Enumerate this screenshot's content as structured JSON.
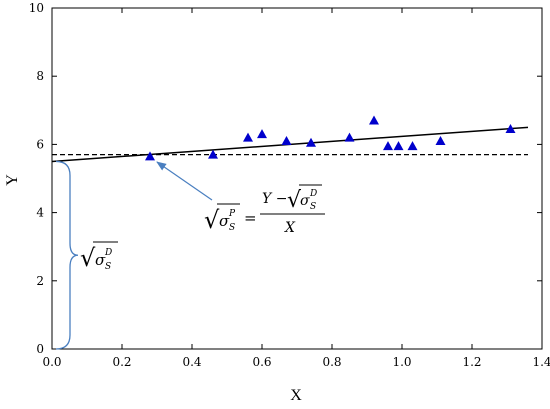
{
  "chart_data": {
    "type": "scatter",
    "title": "",
    "xlabel": "X",
    "ylabel": "Y",
    "xlim": [
      0.0,
      1.4
    ],
    "ylim": [
      0,
      10
    ],
    "x_ticks": [
      0.0,
      0.2,
      0.4,
      0.6,
      0.8,
      1.0,
      1.2,
      1.4
    ],
    "x_tick_labels": [
      "0.0",
      "0.2",
      "0.4",
      "0.6",
      "0.8",
      "1.0",
      "1.2",
      "1.4"
    ],
    "y_ticks": [
      0,
      2,
      4,
      6,
      8,
      10
    ],
    "y_tick_labels": [
      "0",
      "2",
      "4",
      "6",
      "8",
      "10"
    ],
    "grid": false,
    "legend": "none",
    "series": [
      {
        "marker": "triangle",
        "color": "#0000cc",
        "points": [
          {
            "x": 0.28,
            "y": 5.65
          },
          {
            "x": 0.46,
            "y": 5.7
          },
          {
            "x": 0.56,
            "y": 6.2
          },
          {
            "x": 0.6,
            "y": 6.3
          },
          {
            "x": 0.67,
            "y": 6.1
          },
          {
            "x": 0.74,
            "y": 6.05
          },
          {
            "x": 0.85,
            "y": 6.2
          },
          {
            "x": 0.92,
            "y": 6.7
          },
          {
            "x": 0.96,
            "y": 5.95
          },
          {
            "x": 0.99,
            "y": 5.95
          },
          {
            "x": 1.03,
            "y": 5.95
          },
          {
            "x": 1.11,
            "y": 6.1
          },
          {
            "x": 1.31,
            "y": 6.45
          }
        ]
      }
    ],
    "lines": [
      {
        "style": "solid",
        "color": "#000000",
        "x1": 0.0,
        "y1": 5.5,
        "x2": 1.36,
        "y2": 6.5
      },
      {
        "style": "dashed",
        "color": "#000000",
        "x1": 0.0,
        "y1": 5.7,
        "x2": 1.36,
        "y2": 5.7
      }
    ],
    "brace": {
      "color": "#4a7fc0",
      "y_from": 0,
      "y_to": 5.5,
      "at_x": 0.0
    },
    "arrow": {
      "color": "#4a7fc0",
      "points_to": {
        "x": 0.3,
        "y": 5.6
      }
    },
    "annotations": {
      "intercept_label": {
        "sqrt": "√",
        "sigma": "σ",
        "sub": "S",
        "sup": "D"
      },
      "slope_formula": {
        "sqrt": "√",
        "sigma": "σ",
        "sub": "S",
        "sup_left": "P",
        "equals": "=",
        "numerator_left": "Y −",
        "sup_right": "D",
        "denominator": "X"
      }
    }
  }
}
